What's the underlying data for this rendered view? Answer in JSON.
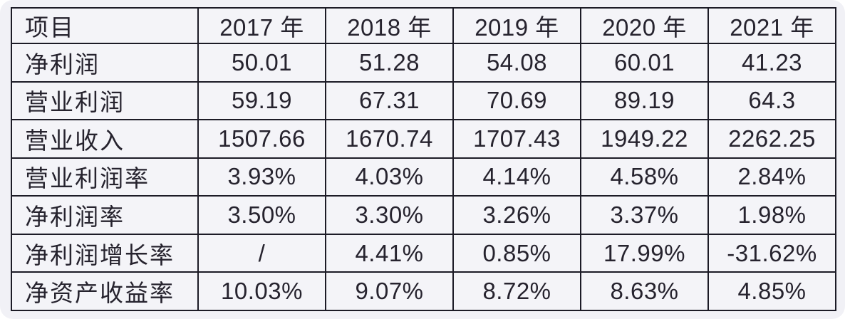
{
  "colors": {
    "panel_bg": "#f1f1f6",
    "cell_bg": "#f4f4f8",
    "border": "#1c1b26",
    "text": "#26232e"
  },
  "chart_data": {
    "type": "table",
    "title": "",
    "header_label": "项目",
    "columns": [
      "2017 年",
      "2018 年",
      "2019 年",
      "2020 年",
      "2021 年"
    ],
    "rows": [
      {
        "label": "净利润",
        "values": [
          "50.01",
          "51.28",
          "54.08",
          "60.01",
          "41.23"
        ]
      },
      {
        "label": "营业利润",
        "values": [
          "59.19",
          "67.31",
          "70.69",
          "89.19",
          "64.3"
        ]
      },
      {
        "label": "营业收入",
        "values": [
          "1507.66",
          "1670.74",
          "1707.43",
          "1949.22",
          "2262.25"
        ]
      },
      {
        "label": "营业利润率",
        "values": [
          "3.93%",
          "4.03%",
          "4.14%",
          "4.58%",
          "2.84%"
        ]
      },
      {
        "label": "净利润率",
        "values": [
          "3.50%",
          "3.30%",
          "3.26%",
          "3.37%",
          "1.98%"
        ]
      },
      {
        "label": "净利润增长率",
        "values": [
          "/",
          "4.41%",
          "0.85%",
          "17.99%",
          "-31.62%"
        ]
      },
      {
        "label": "净资产收益率",
        "values": [
          "10.03%",
          "9.07%",
          "8.72%",
          "8.63%",
          "4.85%"
        ]
      }
    ]
  }
}
